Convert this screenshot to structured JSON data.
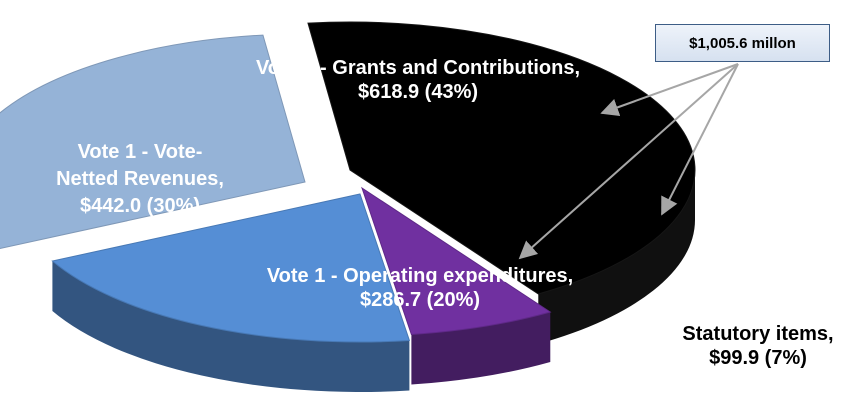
{
  "total_label": "$1,005.6 millon",
  "chart_data": {
    "type": "pie",
    "title": "",
    "total": 1005.6,
    "slices": [
      {
        "name": "Vote 5 - Grants and Contributions",
        "value": 618.9,
        "percent": 43,
        "label_lines": [
          "Vote 5 - Grants and Contributions,",
          "$618.9  (43%)"
        ],
        "color": "#000000",
        "label_color": "#ffffff"
      },
      {
        "name": "Statutory items",
        "value": 99.9,
        "percent": 7,
        "label_lines": [
          "Statutory items,",
          "$99.9  (7%)"
        ],
        "color": "#7030a0",
        "label_color": "#000000"
      },
      {
        "name": "Vote 1 - Operating expenditures",
        "value": 286.7,
        "percent": 20,
        "label_lines": [
          "Vote 1 - Operating expenditures,",
          "$286.7  (20%)"
        ],
        "color": "#558ed5",
        "label_color": "#ffffff"
      },
      {
        "name": "Vote 1 - Vote-Netted Revenues",
        "value": 442.0,
        "percent": 30,
        "label_lines": [
          "Vote 1 - Vote-",
          "Netted Revenues,",
          "$442.0  (30%)"
        ],
        "color": "#95b3d7",
        "label_color": "#ffffff"
      }
    ],
    "exploded": true,
    "three_d": true,
    "legend": "none"
  }
}
